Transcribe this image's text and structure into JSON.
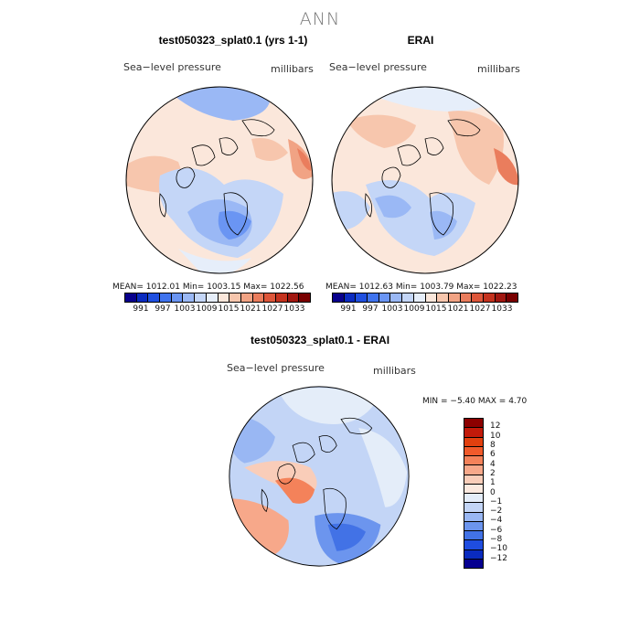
{
  "figure": {
    "title": "ANN"
  },
  "panels": [
    {
      "title": "test050323_splat0.1 (yrs 1-1)",
      "variable": "Sea−level pressure",
      "units": "millibars",
      "stats": "MEAN= 1012.01   Min= 1003.15   Max= 1022.56"
    },
    {
      "title": "ERAI",
      "variable": "Sea−level pressure",
      "units": "millibars",
      "stats": "MEAN= 1012.63   Min= 1003.79   Max= 1022.23"
    },
    {
      "title": "test050323_splat0.1 - ERAI",
      "variable": "Sea−level pressure",
      "units": "millibars",
      "stats": "MIN =  −5.40  MAX =   4.70"
    }
  ],
  "colorbar_abs": {
    "ticks": [
      "991",
      "997",
      "1003",
      "1009",
      "1015",
      "1021",
      "1027",
      "1033"
    ],
    "colors": [
      "#08008c",
      "#0a2bc0",
      "#1f4fe0",
      "#3f73ee",
      "#6a95f3",
      "#9ab8f5",
      "#c4d6f7",
      "#e6eefa",
      "#fbe7db",
      "#f7c6ad",
      "#f1a384",
      "#ea7d5d",
      "#dd563a",
      "#c4321e",
      "#a11710",
      "#790000"
    ]
  },
  "colorbar_diff": {
    "ticks": [
      "12",
      "10",
      "8",
      "6",
      "4",
      "2",
      "1",
      "0",
      "−1",
      "−2",
      "−4",
      "−6",
      "−8",
      "−10",
      "−12"
    ],
    "colors": [
      "#8c0000",
      "#c21a0a",
      "#e2400f",
      "#f15a2b",
      "#f4825a",
      "#f7a88a",
      "#f9cdb9",
      "#fbe9df",
      "#e4edf9",
      "#c3d5f6",
      "#99b7f3",
      "#6c95ee",
      "#4272e6",
      "#1f4de0",
      "#0a2bbf",
      "#060090"
    ]
  }
}
